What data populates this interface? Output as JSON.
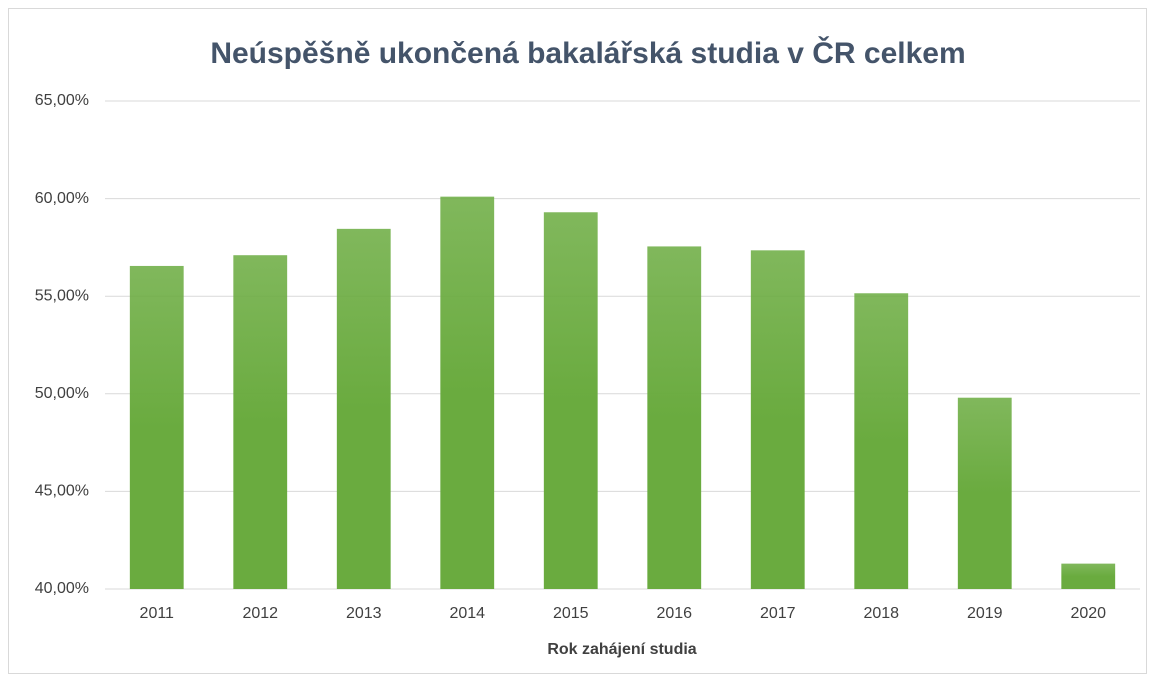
{
  "chart_data": {
    "type": "bar",
    "title": "Neúspěšně ukončená bakalářská studia v ČR celkem",
    "x_label": "Rok zahájení studia",
    "categories": [
      "2011",
      "2012",
      "2013",
      "2014",
      "2015",
      "2016",
      "2017",
      "2018",
      "2019",
      "2020"
    ],
    "values": [
      56.55,
      57.1,
      58.45,
      60.1,
      59.3,
      57.55,
      57.35,
      55.15,
      49.8,
      41.3
    ],
    "color": "#6aab3f",
    "ylim": [
      40,
      65
    ],
    "yticks": [
      {
        "value": 40,
        "label": "40,00%"
      },
      {
        "value": 45,
        "label": "45,00%"
      },
      {
        "value": 50,
        "label": "50,00%"
      },
      {
        "value": 55,
        "label": "55,00%"
      },
      {
        "value": 60,
        "label": "60,00%"
      },
      {
        "value": 65,
        "label": "65,00%"
      }
    ],
    "grid": true
  }
}
